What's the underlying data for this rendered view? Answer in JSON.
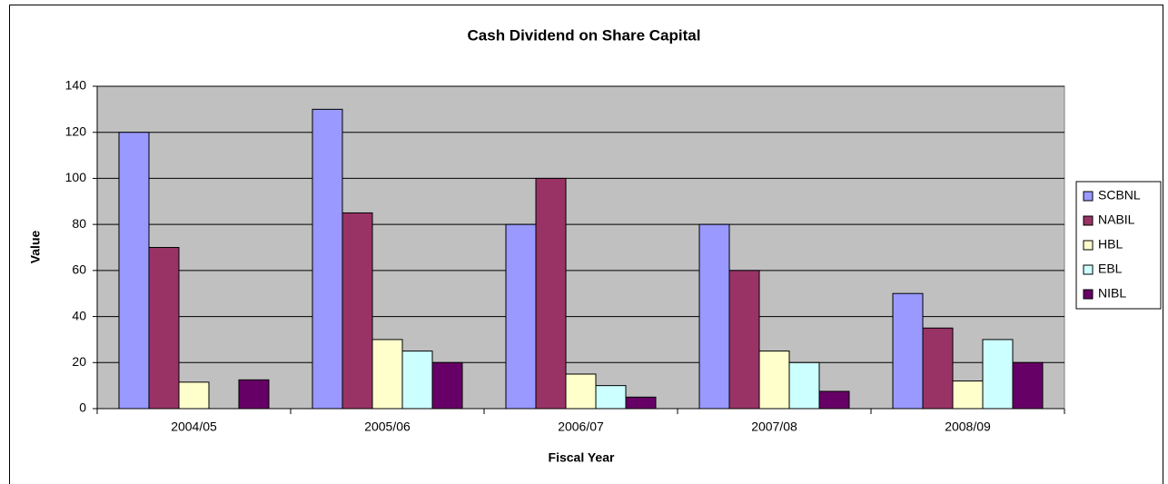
{
  "chart_data": {
    "type": "bar",
    "title": "Cash Dividend on Share Capital",
    "x_label": "Fiscal Year",
    "y_label": "Value",
    "categories": [
      "2004/05",
      "2005/06",
      "2006/07",
      "2007/08",
      "2008/09"
    ],
    "series": [
      {
        "name": "SCBNL",
        "color": "#9999ff",
        "values": [
          120,
          130,
          80,
          80,
          50
        ]
      },
      {
        "name": "NABIL",
        "color": "#993366",
        "values": [
          70,
          85,
          100,
          60,
          35
        ]
      },
      {
        "name": "HBL",
        "color": "#ffffcc",
        "values": [
          11.5,
          30,
          15,
          25,
          12
        ]
      },
      {
        "name": "EBL",
        "color": "#ccffff",
        "values": [
          null,
          25,
          10,
          20,
          30
        ]
      },
      {
        "name": "NIBL",
        "color": "#660066",
        "values": [
          12.5,
          20,
          5,
          7.5,
          20
        ]
      }
    ],
    "ylim": [
      0,
      140
    ],
    "yticks": [
      0,
      20,
      40,
      60,
      80,
      100,
      120,
      140
    ],
    "grid": true,
    "legend": "right"
  }
}
